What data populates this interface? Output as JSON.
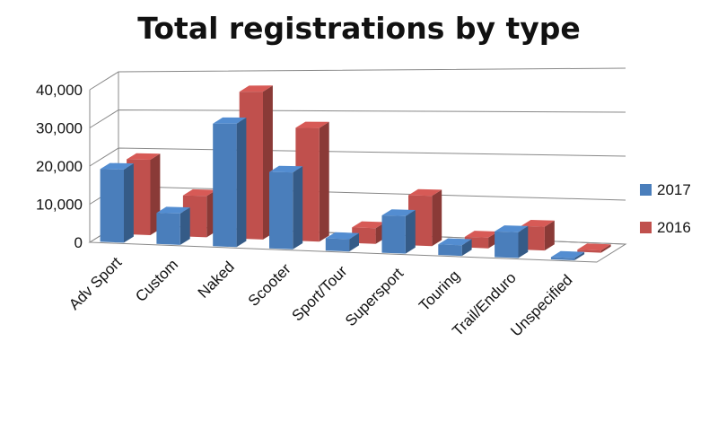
{
  "chart_data": {
    "type": "bar",
    "title": "Total registrations by type",
    "categories": [
      "Adv Sport",
      "Custom",
      "Naked",
      "Scooter",
      "Sport/Tour",
      "Supersport",
      "Touring",
      "Trail/Enduro",
      "Unspecified"
    ],
    "series": [
      {
        "name": "2017",
        "color": "#4a7ebb",
        "values": [
          19000,
          8000,
          31000,
          19000,
          3000,
          9000,
          2500,
          6000,
          500
        ]
      },
      {
        "name": "2016",
        "color": "#c0504d",
        "values": [
          19500,
          10500,
          37000,
          28000,
          3800,
          12000,
          2500,
          5500,
          500
        ]
      }
    ],
    "y_ticks": [
      "0",
      "10,000",
      "20,000",
      "30,000",
      "40,000"
    ],
    "ylim": [
      0,
      40000
    ],
    "grid": true,
    "legend_position": "right"
  }
}
